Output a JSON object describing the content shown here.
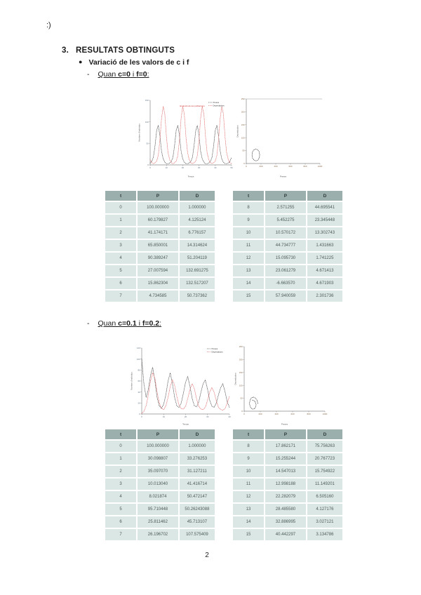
{
  "page": {
    "emoticon": ":)",
    "page_number": "2"
  },
  "headings": {
    "section_num": "3.",
    "section_title": "RESULTATS OBTINGUTS",
    "bullet_glyph": "●",
    "bullet_text": "Variació de les valors de c i f",
    "dash": "-",
    "case1": {
      "pre": "Quan ",
      "c": "c=0",
      "mid": " i ",
      "f": "f=0",
      "post": ":"
    },
    "case2": {
      "pre": "Quan ",
      "c": "c=0.1",
      "mid": " i ",
      "f": "f=0.2",
      "post": ":"
    }
  },
  "colors": {
    "table_header_bg": "#9bafac",
    "table_row_bg": "#dbe7e5",
    "preses": "#444444",
    "depredadors": "#e06666",
    "annotation_red": "#cc3333"
  },
  "tables": {
    "columns": [
      "t",
      "P",
      "D"
    ],
    "case1_left": {
      "rows": [
        [
          "0",
          "100.000000",
          "1.000000"
        ],
        [
          "1",
          "60.179827",
          "4.125124"
        ],
        [
          "2",
          "41.174171",
          "6.776157"
        ],
        [
          "3",
          "65.850001",
          "14.314624"
        ],
        [
          "4",
          "90.389247",
          "51.204119"
        ],
        [
          "5",
          "27.007594",
          "132.691275"
        ],
        [
          "6",
          "15.862304",
          "132.517207"
        ],
        [
          "7",
          "4.734585",
          "50.737362"
        ]
      ]
    },
    "case1_right": {
      "rows": [
        [
          "8",
          "2.571255",
          "44.695541"
        ],
        [
          "9",
          "5.452275",
          "23.345448"
        ],
        [
          "10",
          "10.570172",
          "13.302743"
        ],
        [
          "11",
          "44.734777",
          "1.431663"
        ],
        [
          "12",
          "15.095730",
          "1.741225"
        ],
        [
          "13",
          "23.061279",
          "4.671413"
        ],
        [
          "14",
          "-6.663570",
          "4.671903"
        ],
        [
          "15",
          "57.940059",
          "2.301736"
        ]
      ]
    },
    "case2_left": {
      "rows": [
        [
          "0",
          "100.000000",
          "1.000000"
        ],
        [
          "1",
          "30.098807",
          "33.276253"
        ],
        [
          "2",
          "35.097070",
          "31.127211"
        ],
        [
          "3",
          "10.013040",
          "41.416714"
        ],
        [
          "4",
          "8.021874",
          "50.472147"
        ],
        [
          "5",
          "95.710448",
          "50.26243088"
        ],
        [
          "6",
          "25.811462",
          "45.713107"
        ],
        [
          "7",
          "26.196702",
          "107.575409"
        ]
      ]
    },
    "case2_right": {
      "rows": [
        [
          "8",
          "17.862171",
          "75.756263"
        ],
        [
          "9",
          "15.255244",
          "20.767723"
        ],
        [
          "10",
          "14.547013",
          "15.754922"
        ],
        [
          "11",
          "12.998188",
          "11.149201"
        ],
        [
          "12",
          "22.282079",
          "6.505160"
        ],
        [
          "13",
          "28.485580",
          "4.127176"
        ],
        [
          "14",
          "32.886995",
          "3.027121"
        ],
        [
          "15",
          "40.442297",
          "3.134786"
        ]
      ]
    }
  },
  "chart_data": [
    {
      "id": "ts1",
      "type": "scatter",
      "title": "Evolució de les poblacions",
      "xlabel": "Temps",
      "ylabel": "Nombre d'individus",
      "xlim": [
        0,
        50
      ],
      "ylim": [
        0,
        150
      ],
      "xticks": [
        0,
        10,
        20,
        30,
        40,
        50
      ],
      "yticks": [
        0,
        50,
        100,
        150
      ],
      "legend": [
        "Preses",
        "Depredadors"
      ],
      "legend_position": "top-right",
      "grid": false,
      "series": [
        {
          "name": "Preses",
          "color": "#444444",
          "period": 12,
          "repeats": 5,
          "x": [
            0,
            1,
            2,
            3,
            4,
            5,
            6,
            7,
            8,
            9,
            10,
            11
          ],
          "y": [
            4,
            8,
            18,
            45,
            80,
            92,
            68,
            32,
            14,
            6,
            3,
            3
          ]
        },
        {
          "name": "Depredadors",
          "color": "#e06666",
          "period": 12,
          "repeats": 5,
          "x": [
            0,
            1,
            2,
            3,
            4,
            5,
            6,
            7,
            8,
            9,
            10,
            11
          ],
          "y": [
            12,
            5,
            3,
            5,
            9,
            22,
            58,
            108,
            136,
            118,
            65,
            28
          ]
        }
      ]
    },
    {
      "id": "ph1",
      "type": "scatter",
      "xlabel": "Preses",
      "ylabel": "Depredadors",
      "xlim": [
        0,
        1000
      ],
      "ylim": [
        0,
        250
      ],
      "xticks": [
        0,
        200,
        400,
        600,
        800,
        1000
      ],
      "yticks": [
        0,
        50,
        100,
        150,
        200,
        250
      ],
      "top_frame": true,
      "grid": false,
      "series": [
        {
          "name": "Trajectòria",
          "color": "#333333",
          "closed": true,
          "x": [
            182,
            175,
            156,
            130,
            104,
            85,
            78,
            85,
            104,
            130,
            156,
            175
          ],
          "y": [
            33,
            45,
            53,
            56,
            53,
            45,
            33,
            21,
            13,
            10,
            13,
            21
          ]
        }
      ]
    },
    {
      "id": "ts2",
      "type": "scatter",
      "xlabel": "Temps",
      "ylabel": "Nombre d'individus",
      "xlim": [
        0,
        40
      ],
      "ylim": [
        0,
        120
      ],
      "xticks": [
        0,
        10,
        20,
        30,
        40
      ],
      "yticks": [
        0,
        20,
        40,
        60,
        80,
        100,
        120
      ],
      "legend": [
        "Preses",
        "Depredadors"
      ],
      "legend_position": "top-right",
      "grid": false,
      "series": [
        {
          "name": "Preses",
          "color": "#444444",
          "x0": 0,
          "dx": 1,
          "y": [
            100,
            55,
            30,
            45,
            70,
            85,
            60,
            30,
            15,
            10,
            18,
            35,
            60,
            75,
            55,
            30,
            15,
            12,
            20,
            38,
            58,
            68,
            50,
            28,
            15,
            13,
            22,
            40,
            55,
            62,
            45,
            25,
            14,
            12,
            20,
            35,
            48,
            55,
            40,
            22,
            12
          ]
        },
        {
          "name": "Depredadors",
          "color": "#e06666",
          "x0": 0,
          "dx": 1,
          "y": [
            1,
            5,
            15,
            35,
            60,
            75,
            65,
            40,
            20,
            10,
            8,
            15,
            30,
            50,
            62,
            52,
            32,
            16,
            10,
            9,
            14,
            28,
            45,
            55,
            46,
            28,
            14,
            9,
            8,
            12,
            25,
            40,
            48,
            40,
            24,
            12,
            8,
            7,
            10,
            20,
            32
          ]
        }
      ]
    },
    {
      "id": "ph2",
      "type": "scatter",
      "xlabel": "Preses",
      "ylabel": "Depredadors",
      "xlim": [
        0,
        1000
      ],
      "ylim": [
        0,
        250
      ],
      "xticks": [
        0,
        200,
        400,
        600,
        800,
        1000
      ],
      "yticks": [
        0,
        50,
        100,
        150,
        200,
        250
      ],
      "grid": false,
      "series": [
        {
          "name": "Trajectòria",
          "color": "#333333",
          "x": [
            170,
            160,
            138,
            112,
            88,
            72,
            66,
            72,
            88,
            110,
            130,
            144,
            148,
            138,
            120,
            104,
            96
          ],
          "y": [
            30,
            42,
            51,
            55,
            51,
            42,
            30,
            19,
            11,
            8,
            10,
            17,
            26,
            35,
            41,
            43,
            40
          ]
        }
      ]
    }
  ]
}
